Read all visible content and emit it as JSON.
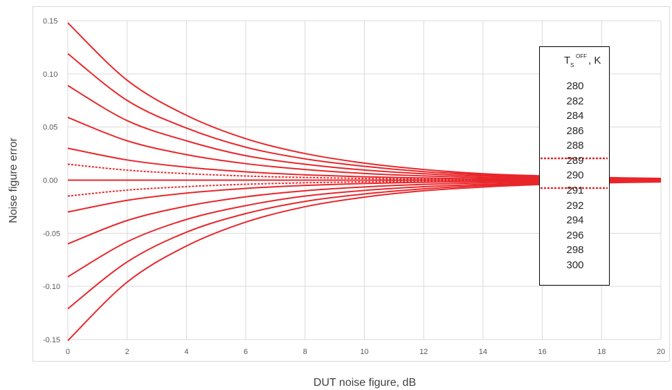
{
  "chart_data": {
    "type": "line",
    "xlabel": "DUT noise figure, dB",
    "ylabel": "Noise figure error",
    "xlim": [
      0,
      20
    ],
    "ylim": [
      -0.15,
      0.15
    ],
    "x_ticks": [
      "0",
      "2",
      "4",
      "6",
      "8",
      "10",
      "12",
      "14",
      "16",
      "18",
      "20"
    ],
    "y_ticks": [
      "0.15",
      "0.10",
      "0.05",
      "0.00",
      "-0.05",
      "-0.10",
      "-0.15"
    ],
    "grid": true,
    "legend": {
      "title_main": "T",
      "title_sub": "S",
      "title_sup": "OFF",
      "title_suffix": ", K",
      "placement": "right",
      "entries": [
        "280",
        "282",
        "284",
        "286",
        "288",
        "289",
        "290",
        "291",
        "292",
        "294",
        "296",
        "298",
        "300"
      ]
    },
    "line_color": "#e8262a",
    "series": [
      {
        "name": "280",
        "style": "solid",
        "x": [
          0,
          2,
          4,
          6,
          8,
          10,
          12,
          14,
          16,
          18,
          20
        ],
        "y": [
          0.148,
          0.094,
          0.061,
          0.039,
          0.025,
          0.016,
          0.01,
          0.006,
          0.004,
          0.0025,
          0.0016
        ]
      },
      {
        "name": "282",
        "style": "solid",
        "x": [
          0,
          2,
          4,
          6,
          8,
          10,
          12,
          14,
          16,
          18,
          20
        ],
        "y": [
          0.119,
          0.075,
          0.049,
          0.031,
          0.02,
          0.013,
          0.008,
          0.005,
          0.0032,
          0.002,
          0.0013
        ]
      },
      {
        "name": "284",
        "style": "solid",
        "x": [
          0,
          2,
          4,
          6,
          8,
          10,
          12,
          14,
          16,
          18,
          20
        ],
        "y": [
          0.089,
          0.056,
          0.037,
          0.023,
          0.015,
          0.0095,
          0.006,
          0.0038,
          0.0024,
          0.0015,
          0.001
        ]
      },
      {
        "name": "286",
        "style": "solid",
        "x": [
          0,
          2,
          4,
          6,
          8,
          10,
          12,
          14,
          16,
          18,
          20
        ],
        "y": [
          0.059,
          0.037,
          0.024,
          0.0155,
          0.01,
          0.0063,
          0.004,
          0.0025,
          0.0016,
          0.001,
          0.0006
        ]
      },
      {
        "name": "288",
        "style": "solid",
        "x": [
          0,
          2,
          4,
          6,
          8,
          10,
          12,
          14,
          16,
          18,
          20
        ],
        "y": [
          0.03,
          0.019,
          0.0122,
          0.0078,
          0.005,
          0.0032,
          0.002,
          0.0013,
          0.0008,
          0.0005,
          0.0003
        ]
      },
      {
        "name": "289",
        "style": "dotted",
        "x": [
          0,
          2,
          4,
          6,
          8,
          10,
          12,
          14,
          16,
          18,
          20
        ],
        "y": [
          0.015,
          0.0094,
          0.0061,
          0.0039,
          0.0025,
          0.0016,
          0.001,
          0.0006,
          0.0004,
          0.00025,
          0.00016
        ]
      },
      {
        "name": "290",
        "style": "solid",
        "x": [
          0,
          2,
          4,
          6,
          8,
          10,
          12,
          14,
          16,
          18,
          20
        ],
        "y": [
          0,
          0,
          0,
          0,
          0,
          0,
          0,
          0,
          0,
          0,
          0
        ]
      },
      {
        "name": "291",
        "style": "dotted",
        "x": [
          0,
          2,
          4,
          6,
          8,
          10,
          12,
          14,
          16,
          18,
          20
        ],
        "y": [
          -0.015,
          -0.0094,
          -0.0061,
          -0.0039,
          -0.0025,
          -0.0016,
          -0.001,
          -0.0006,
          -0.0004,
          -0.00025,
          -0.00016
        ]
      },
      {
        "name": "292",
        "style": "solid",
        "x": [
          0,
          2,
          4,
          6,
          8,
          10,
          12,
          14,
          16,
          18,
          20
        ],
        "y": [
          -0.03,
          -0.019,
          -0.0122,
          -0.0078,
          -0.005,
          -0.0032,
          -0.002,
          -0.0013,
          -0.0008,
          -0.0005,
          -0.0003
        ]
      },
      {
        "name": "294",
        "style": "solid",
        "x": [
          0,
          2,
          4,
          6,
          8,
          10,
          12,
          14,
          16,
          18,
          20
        ],
        "y": [
          -0.06,
          -0.038,
          -0.0245,
          -0.0157,
          -0.01,
          -0.0064,
          -0.004,
          -0.0026,
          -0.0016,
          -0.001,
          -0.0007
        ]
      },
      {
        "name": "296",
        "style": "solid",
        "x": [
          0,
          2,
          4,
          6,
          8,
          10,
          12,
          14,
          16,
          18,
          20
        ],
        "y": [
          -0.091,
          -0.058,
          -0.037,
          -0.024,
          -0.015,
          -0.0097,
          -0.0062,
          -0.004,
          -0.0025,
          -0.0016,
          -0.001
        ]
      },
      {
        "name": "298",
        "style": "solid",
        "x": [
          0,
          2,
          4,
          6,
          8,
          10,
          12,
          14,
          16,
          18,
          20
        ],
        "y": [
          -0.121,
          -0.077,
          -0.049,
          -0.0315,
          -0.02,
          -0.013,
          -0.0082,
          -0.0052,
          -0.0033,
          -0.0021,
          -0.0013
        ]
      },
      {
        "name": "300",
        "style": "solid",
        "x": [
          0,
          2,
          4,
          6,
          8,
          10,
          12,
          14,
          16,
          18,
          20
        ],
        "y": [
          -0.151,
          -0.096,
          -0.062,
          -0.0395,
          -0.025,
          -0.016,
          -0.01,
          -0.0065,
          -0.0041,
          -0.0026,
          -0.0017
        ]
      }
    ]
  }
}
